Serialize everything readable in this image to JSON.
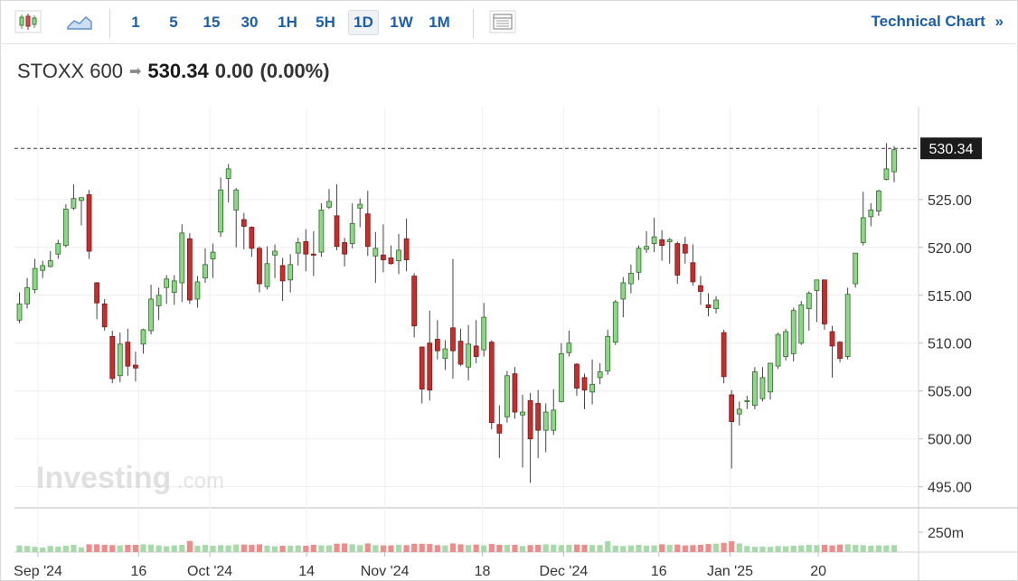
{
  "toolbar": {
    "timeframes": [
      "1",
      "5",
      "15",
      "30",
      "1H",
      "5H",
      "1D",
      "1W",
      "1M"
    ],
    "active_timeframe": "1D",
    "technical_chart_label": "Technical Chart",
    "technical_chart_chevron": "»",
    "icons": [
      "candlestick-chart-icon",
      "area-chart-icon",
      "table-view-icon"
    ]
  },
  "header": {
    "name": "STOXX 600",
    "arrow": "➡",
    "price": "530.34",
    "change": "0.00",
    "change_pct": "(0.00%)"
  },
  "watermark": {
    "brand": "Investing",
    "suffix": ".com"
  },
  "chart_data": {
    "type": "candlestick",
    "title": "STOXX 600",
    "last_price": 530.34,
    "last_price_label": "530.34",
    "y_ticks": [
      "525.00",
      "520.00",
      "515.00",
      "510.00",
      "505.00",
      "500.00",
      "495.00"
    ],
    "y_tick_values": [
      525,
      520,
      515,
      510,
      505,
      500,
      495
    ],
    "ylim": [
      492.8,
      534.7
    ],
    "volume_tick": "250m",
    "volume_tick_value": 250,
    "x_labels": [
      "Sep '24",
      "16",
      "Oct '24",
      "14",
      "Nov '24",
      "18",
      "Dec '24",
      "16",
      "Jan '25",
      "20"
    ],
    "x_label_index": [
      2.4,
      15.4,
      24.6,
      37.1,
      47.2,
      59.8,
      70.3,
      82.6,
      91.8,
      103.2
    ],
    "grid": true,
    "candles": [
      {
        "d": "Aug 29",
        "o": 512.4,
        "h": 515.3,
        "l": 512.1,
        "c": 514.1,
        "v": 120,
        "up": true
      },
      {
        "d": "Aug 30",
        "o": 514.1,
        "h": 516.8,
        "l": 513.6,
        "c": 515.8,
        "v": 110,
        "up": true
      },
      {
        "d": "Sep 02",
        "o": 515.6,
        "h": 518.8,
        "l": 515.2,
        "c": 517.8,
        "v": 95,
        "up": true
      },
      {
        "d": "Sep 03",
        "o": 517.6,
        "h": 518.6,
        "l": 516.8,
        "c": 518.1,
        "v": 80,
        "up": true
      },
      {
        "d": "Sep 04",
        "o": 518.0,
        "h": 519.6,
        "l": 517.9,
        "c": 518.6,
        "v": 110,
        "up": true
      },
      {
        "d": "Sep 05",
        "o": 519.3,
        "h": 520.8,
        "l": 518.8,
        "c": 520.4,
        "v": 100,
        "up": true
      },
      {
        "d": "Sep 06",
        "o": 520.2,
        "h": 524.5,
        "l": 520.0,
        "c": 524.0,
        "v": 115,
        "up": true
      },
      {
        "d": "Sep 09",
        "o": 524.1,
        "h": 526.6,
        "l": 523.9,
        "c": 525.1,
        "v": 130,
        "up": true
      },
      {
        "d": "Sep 10",
        "o": 525.2,
        "h": 525.2,
        "l": 522.3,
        "c": 524.9,
        "v": 85,
        "up": true
      },
      {
        "d": "Sep 11",
        "o": 525.5,
        "h": 526.0,
        "l": 518.8,
        "c": 519.6,
        "v": 140,
        "up": false
      },
      {
        "d": "Sep 12",
        "o": 516.3,
        "h": 516.4,
        "l": 512.5,
        "c": 514.2,
        "v": 140,
        "up": false
      },
      {
        "d": "Sep 13",
        "o": 514.1,
        "h": 514.6,
        "l": 511.3,
        "c": 511.7,
        "v": 130,
        "up": false
      },
      {
        "d": "Sep 16",
        "o": 510.7,
        "h": 511.3,
        "l": 505.8,
        "c": 506.3,
        "v": 125,
        "up": false
      },
      {
        "d": "Sep 17",
        "o": 506.6,
        "h": 511.1,
        "l": 505.9,
        "c": 509.9,
        "v": 120,
        "up": true
      },
      {
        "d": "Sep 18",
        "o": 510.1,
        "h": 511.5,
        "l": 506.6,
        "c": 507.6,
        "v": 130,
        "up": false
      },
      {
        "d": "Sep 19",
        "o": 507.7,
        "h": 509.1,
        "l": 506.0,
        "c": 507.4,
        "v": 130,
        "up": false
      },
      {
        "d": "Sep 20",
        "o": 509.9,
        "h": 511.5,
        "l": 508.9,
        "c": 511.4,
        "v": 140,
        "up": true
      },
      {
        "d": "Sep 23",
        "o": 511.3,
        "h": 516.1,
        "l": 510.9,
        "c": 514.6,
        "v": 135,
        "up": true
      },
      {
        "d": "Sep 24",
        "o": 513.9,
        "h": 515.8,
        "l": 512.4,
        "c": 515.0,
        "v": 120,
        "up": true
      },
      {
        "d": "Sep 25",
        "o": 515.8,
        "h": 517.1,
        "l": 514.1,
        "c": 516.7,
        "v": 105,
        "up": true
      },
      {
        "d": "Sep 26",
        "o": 515.3,
        "h": 517.1,
        "l": 514.0,
        "c": 516.5,
        "v": 120,
        "up": true
      },
      {
        "d": "Sep 27",
        "o": 516.3,
        "h": 522.4,
        "l": 514.3,
        "c": 521.5,
        "v": 130,
        "up": true
      },
      {
        "d": "Sep 30",
        "o": 520.9,
        "h": 521.5,
        "l": 514.1,
        "c": 514.5,
        "v": 200,
        "up": false
      },
      {
        "d": "Oct 01",
        "o": 514.6,
        "h": 517.0,
        "l": 513.7,
        "c": 516.4,
        "v": 115,
        "up": true
      },
      {
        "d": "Oct 02",
        "o": 516.8,
        "h": 519.9,
        "l": 516.3,
        "c": 518.2,
        "v": 130,
        "up": true
      },
      {
        "d": "Oct 03",
        "o": 518.8,
        "h": 520.4,
        "l": 516.8,
        "c": 519.5,
        "v": 115,
        "up": true
      },
      {
        "d": "Oct 04",
        "o": 521.6,
        "h": 527.3,
        "l": 521.1,
        "c": 526.0,
        "v": 125,
        "up": true
      },
      {
        "d": "Oct 07",
        "o": 528.2,
        "h": 528.7,
        "l": 524.7,
        "c": 527.2,
        "v": 120,
        "up": true
      },
      {
        "d": "Oct 08",
        "o": 526.0,
        "h": 526.2,
        "l": 520.0,
        "c": 523.9,
        "v": 135,
        "up": true
      },
      {
        "d": "Oct 09",
        "o": 522.9,
        "h": 523.6,
        "l": 519.8,
        "c": 522.2,
        "v": 135,
        "up": false
      },
      {
        "d": "Oct 10",
        "o": 522.1,
        "h": 522.2,
        "l": 519.0,
        "c": 519.9,
        "v": 130,
        "up": false
      },
      {
        "d": "Oct 11",
        "o": 519.9,
        "h": 520.1,
        "l": 515.3,
        "c": 516.2,
        "v": 140,
        "up": false
      },
      {
        "d": "Oct 14",
        "o": 515.9,
        "h": 520.1,
        "l": 515.6,
        "c": 518.3,
        "v": 115,
        "up": true
      },
      {
        "d": "Oct 15",
        "o": 519.6,
        "h": 520.3,
        "l": 516.8,
        "c": 519.2,
        "v": 105,
        "up": true
      },
      {
        "d": "Oct 16",
        "o": 518.1,
        "h": 518.9,
        "l": 514.4,
        "c": 516.5,
        "v": 115,
        "up": false
      },
      {
        "d": "Oct 17",
        "o": 516.6,
        "h": 519.3,
        "l": 515.3,
        "c": 518.2,
        "v": 115,
        "up": true
      },
      {
        "d": "Oct 18",
        "o": 519.4,
        "h": 521.0,
        "l": 518.1,
        "c": 520.5,
        "v": 120,
        "up": true
      },
      {
        "d": "Oct 21",
        "o": 520.6,
        "h": 521.9,
        "l": 517.5,
        "c": 519.3,
        "v": 115,
        "up": false
      },
      {
        "d": "Oct 22",
        "o": 519.3,
        "h": 521.7,
        "l": 517.0,
        "c": 519.3,
        "v": 130,
        "up": false
      },
      {
        "d": "Oct 23",
        "o": 519.5,
        "h": 524.6,
        "l": 519.0,
        "c": 523.9,
        "v": 120,
        "up": true
      },
      {
        "d": "Oct 24",
        "o": 524.2,
        "h": 526.1,
        "l": 524.0,
        "c": 524.8,
        "v": 120,
        "up": true
      },
      {
        "d": "Oct 25",
        "o": 523.3,
        "h": 526.6,
        "l": 519.7,
        "c": 520.1,
        "v": 150,
        "up": false
      },
      {
        "d": "Oct 28",
        "o": 520.5,
        "h": 521.0,
        "l": 518.0,
        "c": 519.3,
        "v": 155,
        "up": false
      },
      {
        "d": "Oct 29",
        "o": 520.4,
        "h": 524.6,
        "l": 519.9,
        "c": 522.5,
        "v": 140,
        "up": true
      },
      {
        "d": "Oct 30",
        "o": 524.5,
        "h": 525.1,
        "l": 522.1,
        "c": 524.1,
        "v": 125,
        "up": true
      },
      {
        "d": "Oct 31",
        "o": 523.5,
        "h": 525.9,
        "l": 519.1,
        "c": 520.1,
        "v": 155,
        "up": false
      },
      {
        "d": "Nov 01",
        "o": 519.1,
        "h": 521.6,
        "l": 516.3,
        "c": 519.9,
        "v": 125,
        "up": true
      },
      {
        "d": "Nov 04",
        "o": 519.2,
        "h": 522.4,
        "l": 517.4,
        "c": 518.7,
        "v": 120,
        "up": false
      },
      {
        "d": "Nov 05",
        "o": 518.9,
        "h": 520.2,
        "l": 518.2,
        "c": 518.3,
        "v": 120,
        "up": false
      },
      {
        "d": "Nov 06",
        "o": 519.7,
        "h": 521.4,
        "l": 517.2,
        "c": 518.6,
        "v": 130,
        "up": true
      },
      {
        "d": "Nov 07",
        "o": 520.9,
        "h": 523.0,
        "l": 517.5,
        "c": 518.7,
        "v": 125,
        "up": false
      },
      {
        "d": "Nov 08",
        "o": 517.0,
        "h": 517.3,
        "l": 510.6,
        "c": 511.8,
        "v": 150,
        "up": false
      },
      {
        "d": "Nov 11",
        "o": 509.6,
        "h": 509.6,
        "l": 503.7,
        "c": 505.2,
        "v": 150,
        "up": false
      },
      {
        "d": "Nov 12",
        "o": 510.0,
        "h": 513.4,
        "l": 504.0,
        "c": 505.1,
        "v": 145,
        "up": false
      },
      {
        "d": "Nov 13",
        "o": 510.4,
        "h": 512.4,
        "l": 508.3,
        "c": 509.2,
        "v": 125,
        "up": false
      },
      {
        "d": "Nov 14",
        "o": 508.4,
        "h": 510.3,
        "l": 507.2,
        "c": 509.4,
        "v": 120,
        "up": true
      },
      {
        "d": "Nov 15",
        "o": 511.6,
        "h": 518.8,
        "l": 506.3,
        "c": 509.2,
        "v": 155,
        "up": false
      },
      {
        "d": "Nov 18",
        "o": 510.2,
        "h": 511.5,
        "l": 507.6,
        "c": 507.8,
        "v": 140,
        "up": false
      },
      {
        "d": "Nov 19",
        "o": 507.5,
        "h": 511.9,
        "l": 506.1,
        "c": 509.9,
        "v": 125,
        "up": true
      },
      {
        "d": "Nov 20",
        "o": 509.7,
        "h": 512.4,
        "l": 507.9,
        "c": 508.6,
        "v": 135,
        "up": false
      },
      {
        "d": "Nov 21",
        "o": 509.3,
        "h": 514.2,
        "l": 508.6,
        "c": 512.7,
        "v": 120,
        "up": true
      },
      {
        "d": "Nov 22",
        "o": 510.1,
        "h": 510.3,
        "l": 501.0,
        "c": 501.7,
        "v": 145,
        "up": false
      },
      {
        "d": "Nov 25",
        "o": 501.5,
        "h": 503.5,
        "l": 498.0,
        "c": 500.6,
        "v": 130,
        "up": false
      },
      {
        "d": "Nov 26",
        "o": 502.3,
        "h": 507.1,
        "l": 501.7,
        "c": 506.6,
        "v": 130,
        "up": true
      },
      {
        "d": "Nov 27",
        "o": 506.8,
        "h": 507.5,
        "l": 502.1,
        "c": 502.8,
        "v": 130,
        "up": false
      },
      {
        "d": "Nov 28",
        "o": 502.8,
        "h": 504.6,
        "l": 497.0,
        "c": 502.5,
        "v": 110,
        "up": true
      },
      {
        "d": "Nov 29",
        "o": 504.0,
        "h": 504.8,
        "l": 495.4,
        "c": 500.0,
        "v": 125,
        "up": false
      },
      {
        "d": "Dec 02",
        "o": 503.7,
        "h": 505.1,
        "l": 498.0,
        "c": 500.9,
        "v": 130,
        "up": false
      },
      {
        "d": "Dec 03",
        "o": 502.8,
        "h": 503.7,
        "l": 498.6,
        "c": 500.9,
        "v": 140,
        "up": true
      },
      {
        "d": "Dec 04",
        "o": 500.9,
        "h": 505.2,
        "l": 500.4,
        "c": 503.0,
        "v": 135,
        "up": true
      },
      {
        "d": "Dec 05",
        "o": 503.9,
        "h": 510.0,
        "l": 503.8,
        "c": 508.9,
        "v": 125,
        "up": true
      },
      {
        "d": "Dec 06",
        "o": 509.0,
        "h": 511.3,
        "l": 508.6,
        "c": 510.0,
        "v": 130,
        "up": true
      },
      {
        "d": "Dec 09",
        "o": 507.8,
        "h": 507.9,
        "l": 504.5,
        "c": 505.3,
        "v": 135,
        "up": false
      },
      {
        "d": "Dec 10",
        "o": 506.4,
        "h": 506.8,
        "l": 503.1,
        "c": 505.1,
        "v": 130,
        "up": false
      },
      {
        "d": "Dec 11",
        "o": 505.7,
        "h": 508.3,
        "l": 503.6,
        "c": 504.9,
        "v": 125,
        "up": true
      },
      {
        "d": "Dec 12",
        "o": 506.4,
        "h": 507.9,
        "l": 505.7,
        "c": 507.0,
        "v": 125,
        "up": true
      },
      {
        "d": "Dec 13",
        "o": 507.1,
        "h": 511.4,
        "l": 506.7,
        "c": 510.7,
        "v": 195,
        "up": true
      },
      {
        "d": "Dec 16",
        "o": 510.1,
        "h": 514.5,
        "l": 509.8,
        "c": 514.3,
        "v": 115,
        "up": true
      },
      {
        "d": "Dec 17",
        "o": 514.6,
        "h": 516.9,
        "l": 512.7,
        "c": 516.3,
        "v": 110,
        "up": true
      },
      {
        "d": "Dec 18",
        "o": 516.2,
        "h": 518.2,
        "l": 515.2,
        "c": 517.3,
        "v": 120,
        "up": true
      },
      {
        "d": "Dec 19",
        "o": 517.4,
        "h": 520.2,
        "l": 516.6,
        "c": 519.9,
        "v": 130,
        "up": true
      },
      {
        "d": "Dec 20",
        "o": 519.8,
        "h": 521.7,
        "l": 519.4,
        "c": 520.1,
        "v": 115,
        "up": true
      },
      {
        "d": "Dec 23",
        "o": 520.4,
        "h": 523.1,
        "l": 519.5,
        "c": 521.1,
        "v": 120,
        "up": true
      },
      {
        "d": "Dec 24",
        "o": 520.8,
        "h": 521.8,
        "l": 518.6,
        "c": 520.2,
        "v": 140,
        "up": false
      },
      {
        "d": "Dec 27",
        "o": 520.8,
        "h": 521.0,
        "l": 518.3,
        "c": 520.6,
        "v": 130,
        "up": true
      },
      {
        "d": "Dec 30",
        "o": 520.4,
        "h": 520.6,
        "l": 516.2,
        "c": 517.1,
        "v": 135,
        "up": false
      },
      {
        "d": "Dec 31",
        "o": 520.3,
        "h": 521.1,
        "l": 518.3,
        "c": 519.4,
        "v": 120,
        "up": false
      },
      {
        "d": "Jan 02",
        "o": 518.4,
        "h": 520.3,
        "l": 516.0,
        "c": 516.4,
        "v": 125,
        "up": false
      },
      {
        "d": "Jan 03",
        "o": 516.0,
        "h": 517.0,
        "l": 514.0,
        "c": 515.4,
        "v": 130,
        "up": false
      },
      {
        "d": "Jan 06",
        "o": 514.0,
        "h": 515.2,
        "l": 512.8,
        "c": 513.7,
        "v": 145,
        "up": false
      },
      {
        "d": "Jan 07",
        "o": 513.6,
        "h": 514.9,
        "l": 513.1,
        "c": 514.5,
        "v": 150,
        "up": true
      },
      {
        "d": "Jan 08",
        "o": 511.1,
        "h": 511.4,
        "l": 505.8,
        "c": 506.5,
        "v": 165,
        "up": false
      },
      {
        "d": "Jan 09",
        "o": 504.6,
        "h": 505.1,
        "l": 496.9,
        "c": 501.8,
        "v": 195,
        "up": false
      },
      {
        "d": "Jan 10",
        "o": 502.6,
        "h": 503.9,
        "l": 501.4,
        "c": 503.1,
        "v": 155,
        "up": true
      },
      {
        "d": "Jan 13",
        "o": 503.9,
        "h": 504.5,
        "l": 503.1,
        "c": 504.0,
        "v": 110,
        "up": true
      },
      {
        "d": "Jan 14",
        "o": 503.5,
        "h": 507.5,
        "l": 503.1,
        "c": 507.0,
        "v": 95,
        "up": true
      },
      {
        "d": "Jan 15",
        "o": 504.2,
        "h": 507.5,
        "l": 503.9,
        "c": 506.4,
        "v": 100,
        "up": true
      },
      {
        "d": "Jan 16",
        "o": 504.9,
        "h": 507.8,
        "l": 504.1,
        "c": 507.9,
        "v": 95,
        "up": true
      },
      {
        "d": "Jan 17",
        "o": 507.6,
        "h": 511.1,
        "l": 507.3,
        "c": 510.9,
        "v": 110,
        "up": true
      },
      {
        "d": "Jan 20",
        "o": 508.6,
        "h": 511.5,
        "l": 508.2,
        "c": 511.2,
        "v": 105,
        "up": true
      },
      {
        "d": "Jan 21",
        "o": 508.9,
        "h": 513.7,
        "l": 508.1,
        "c": 513.4,
        "v": 115,
        "up": true
      },
      {
        "d": "Jan 22",
        "o": 510.0,
        "h": 514.4,
        "l": 509.8,
        "c": 514.0,
        "v": 120,
        "up": true
      },
      {
        "d": "Jan 23",
        "o": 513.6,
        "h": 515.4,
        "l": 511.3,
        "c": 515.2,
        "v": 130,
        "up": true
      },
      {
        "d": "Jan 24",
        "o": 515.5,
        "h": 516.5,
        "l": 512.2,
        "c": 516.6,
        "v": 125,
        "up": true
      },
      {
        "d": "Jan 27",
        "o": 516.6,
        "h": 516.6,
        "l": 511.4,
        "c": 512.0,
        "v": 130,
        "up": false
      },
      {
        "d": "Jan 28",
        "o": 511.2,
        "h": 511.8,
        "l": 506.4,
        "c": 509.7,
        "v": 120,
        "up": false
      },
      {
        "d": "Jan 29",
        "o": 510.1,
        "h": 510.2,
        "l": 508.0,
        "c": 508.4,
        "v": 135,
        "up": false
      },
      {
        "d": "Jan 30",
        "o": 508.6,
        "h": 515.8,
        "l": 508.3,
        "c": 515.1,
        "v": 140,
        "up": true
      },
      {
        "d": "Jan 31",
        "o": 516.2,
        "h": 519.3,
        "l": 515.8,
        "c": 519.4,
        "v": 130,
        "up": true
      },
      {
        "d": "Feb 03",
        "o": 520.5,
        "h": 525.8,
        "l": 520.2,
        "c": 523.1,
        "v": 125,
        "up": true
      },
      {
        "d": "Feb 04",
        "o": 523.2,
        "h": 524.6,
        "l": 522.2,
        "c": 523.9,
        "v": 115,
        "up": true
      },
      {
        "d": "Feb 05",
        "o": 523.8,
        "h": 526.0,
        "l": 523.3,
        "c": 525.9,
        "v": 120,
        "up": true
      },
      {
        "d": "Feb 06",
        "o": 527.1,
        "h": 530.9,
        "l": 527.0,
        "c": 528.2,
        "v": 120,
        "up": true
      },
      {
        "d": "Feb 07",
        "o": 527.9,
        "h": 530.6,
        "l": 526.8,
        "c": 530.2,
        "v": 125,
        "up": true
      }
    ]
  }
}
